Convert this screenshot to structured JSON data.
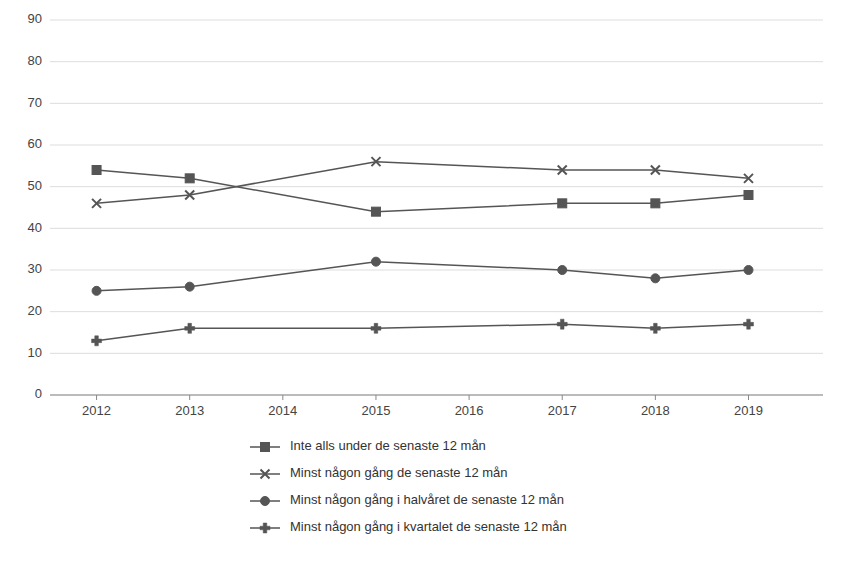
{
  "chart_data": {
    "type": "line",
    "x": [
      2012,
      2013,
      2015,
      2017,
      2018,
      2019
    ],
    "series": [
      {
        "name": "Inte alls under de senaste 12 mån",
        "color": "#555555",
        "marker": "square",
        "values": [
          54,
          52,
          44,
          46,
          46,
          48
        ]
      },
      {
        "name": "Minst någon gång de senaste 12 mån",
        "color": "#555555",
        "marker": "x",
        "values": [
          46,
          48,
          56,
          54,
          54,
          52
        ]
      },
      {
        "name": "Minst någon gång i halvåret de senaste 12 mån",
        "color": "#555555",
        "marker": "circle",
        "values": [
          25,
          26,
          32,
          30,
          28,
          30
        ]
      },
      {
        "name": "Minst någon gång i kvartalet de senaste 12 mån",
        "color": "#555555",
        "marker": "plus",
        "values": [
          13,
          16,
          16,
          17,
          16,
          17
        ]
      }
    ],
    "xlim": [
      2011.5,
      2019.8
    ],
    "xticks": [
      2012,
      2013,
      2014,
      2015,
      2016,
      2017,
      2018,
      2019
    ],
    "ylim": [
      0,
      90
    ],
    "yticks": [
      0,
      10,
      20,
      30,
      40,
      50,
      60,
      70,
      80,
      90
    ],
    "grid": true,
    "legend": "bottom"
  }
}
